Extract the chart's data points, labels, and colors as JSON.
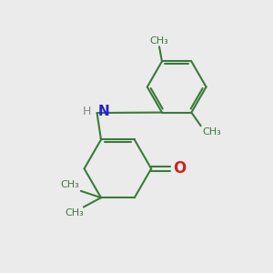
{
  "bg_color": "#ebebeb",
  "bond_color": "#3a7a3a",
  "N_color": "#2222cc",
  "O_color": "#cc2222",
  "H_color": "#888888",
  "bond_width": 1.5,
  "fig_size": [
    3.0,
    3.0
  ],
  "dpi": 100,
  "xlim": [
    0,
    10
  ],
  "ylim": [
    0,
    10
  ]
}
